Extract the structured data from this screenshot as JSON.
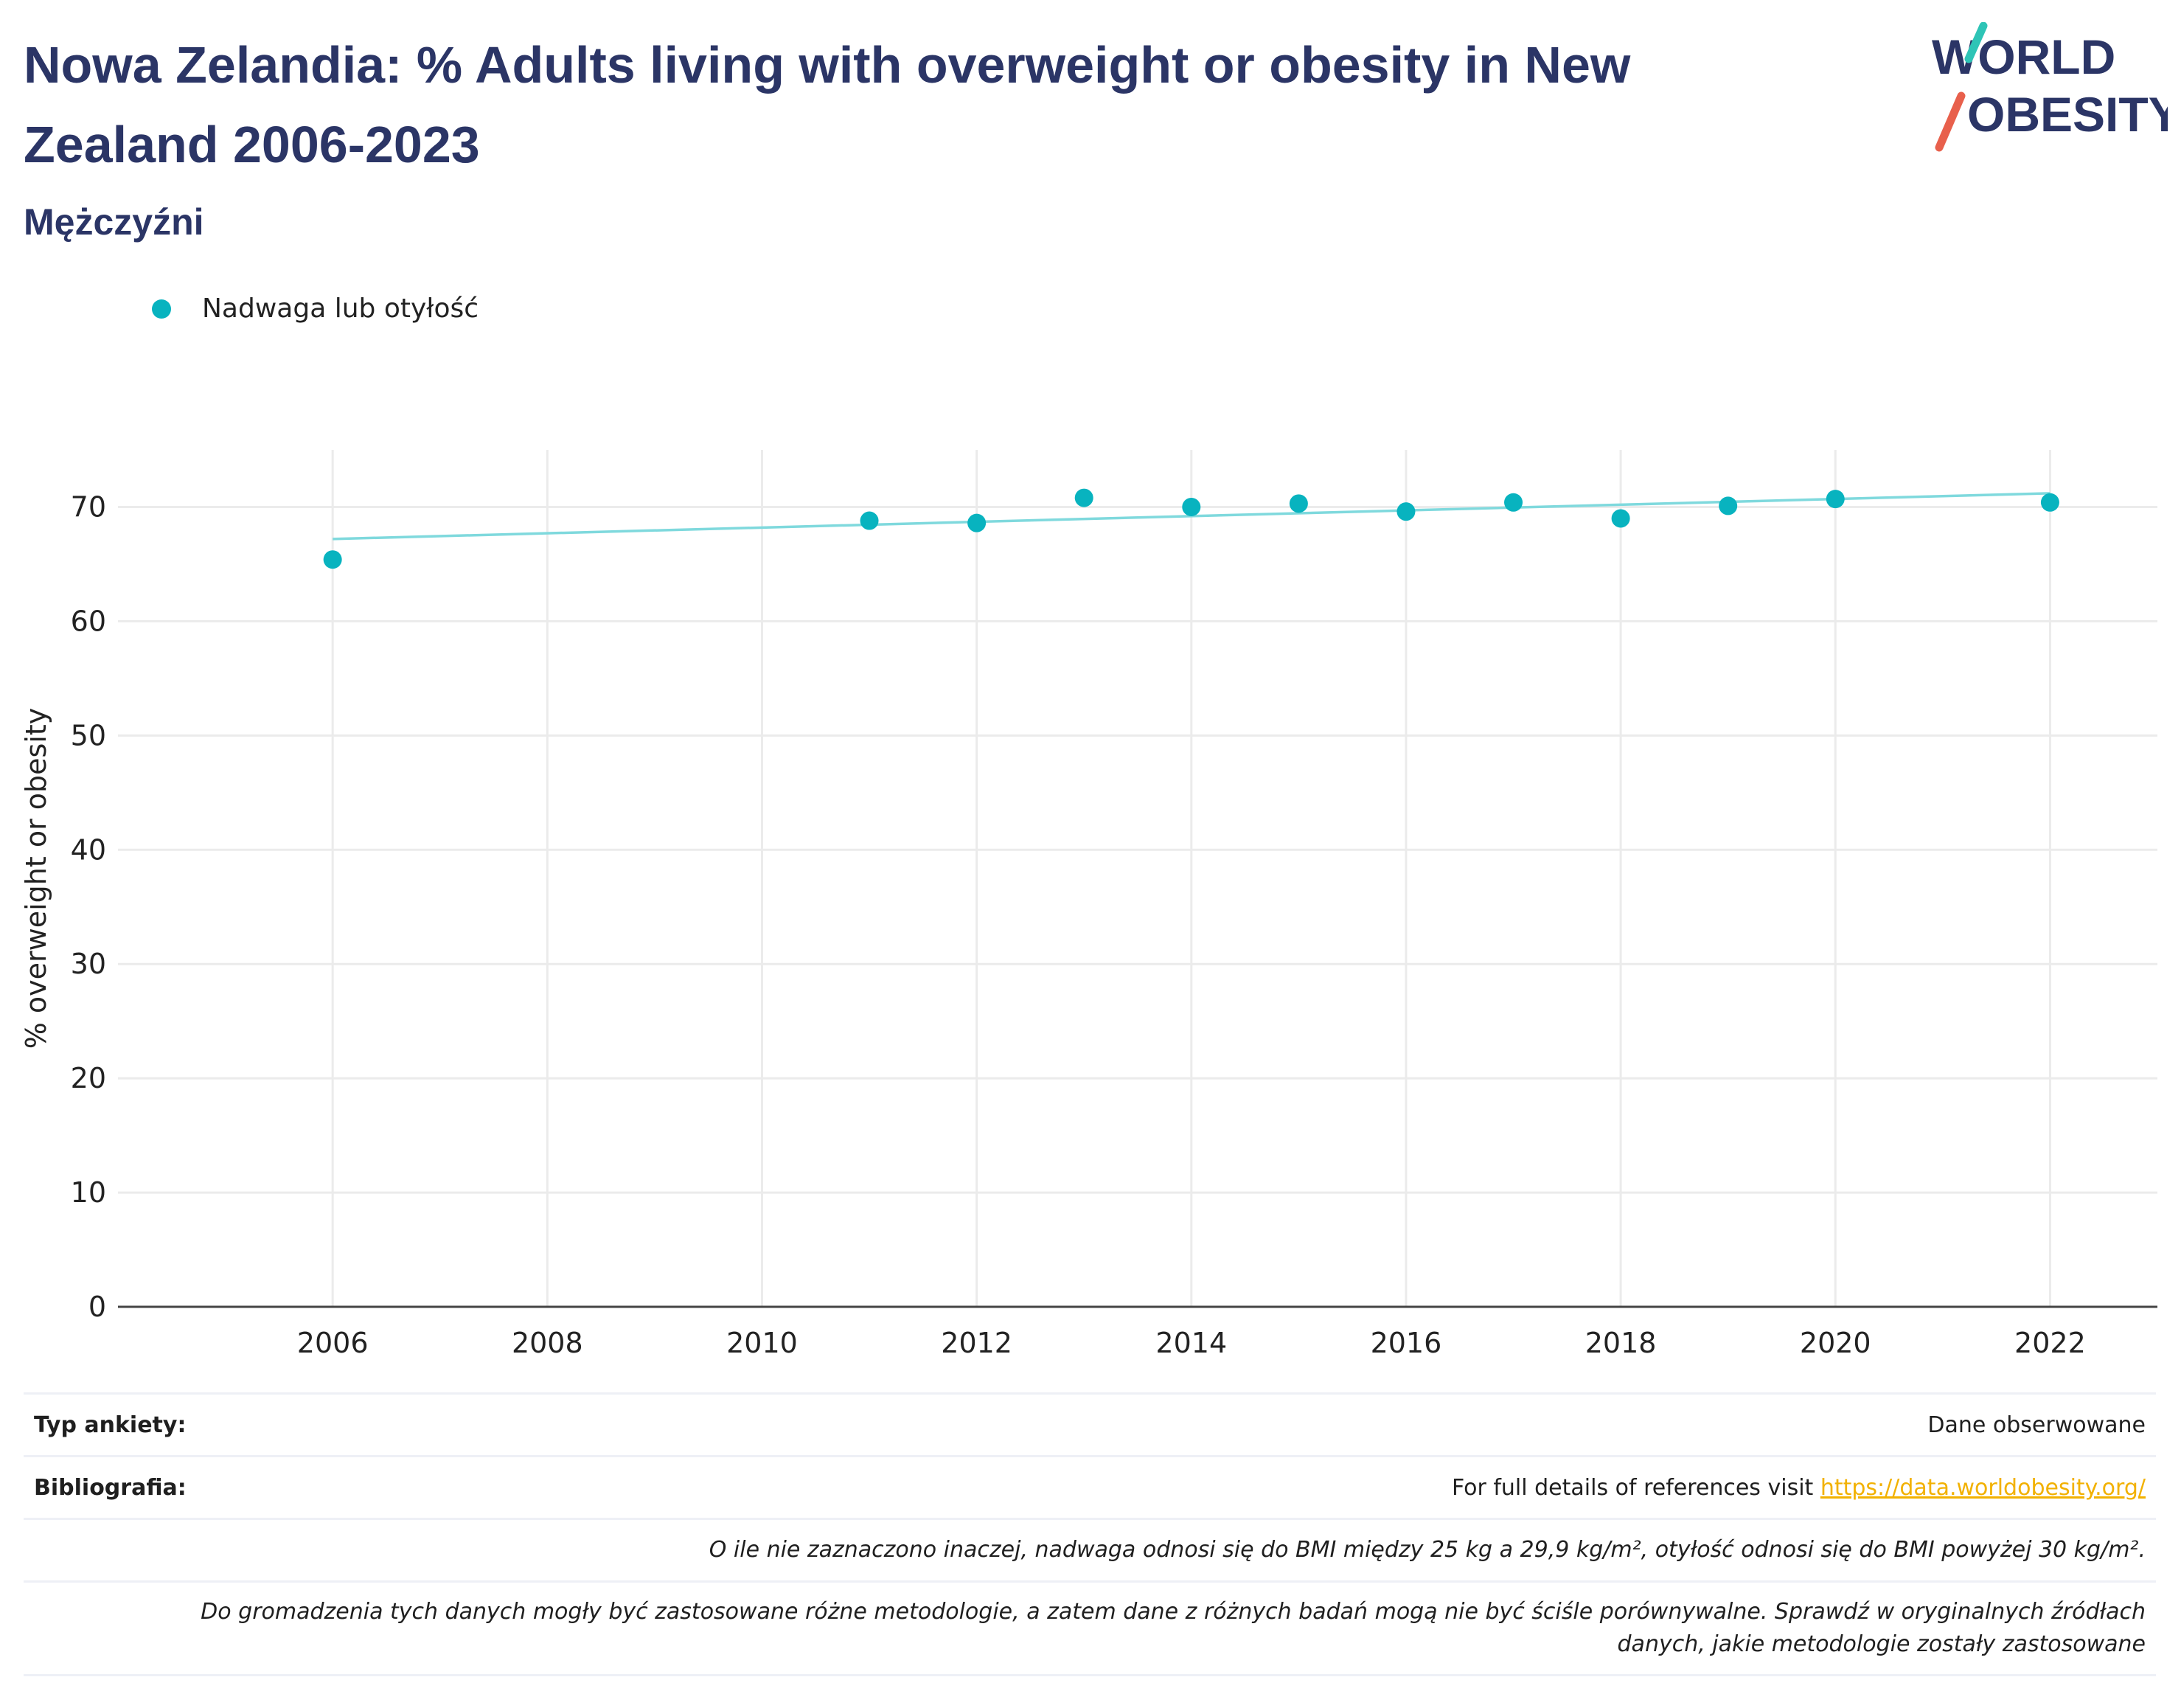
{
  "title": "Nowa Zelandia: % Adults living with overweight or obesity in New Zealand 2006-2023",
  "subtitle": "Mężczyźni",
  "logo": {
    "line1": "WORLD",
    "line2": "OBESITY",
    "accent_teal": "#2ec4b6",
    "accent_red": "#e8604c",
    "text_color": "#2b3566"
  },
  "legend": {
    "label": "Nadwaga lub otyłość",
    "color": "#08b3bf"
  },
  "chart_data": {
    "type": "scatter",
    "ylabel": "% overweight or obesity",
    "xlabel": "",
    "xlim": [
      2005,
      2023
    ],
    "ylim": [
      0,
      75
    ],
    "x_ticks": [
      2006,
      2008,
      2010,
      2012,
      2014,
      2016,
      2018,
      2020,
      2022
    ],
    "y_ticks": [
      0,
      10,
      20,
      30,
      40,
      50,
      60,
      70
    ],
    "grid": true,
    "series": [
      {
        "name": "Nadwaga lub otyłość",
        "color": "#08b3bf",
        "x": [
          2006,
          2011,
          2012,
          2013,
          2014,
          2015,
          2016,
          2017,
          2018,
          2019,
          2020,
          2022
        ],
        "y": [
          65.4,
          68.8,
          68.6,
          70.8,
          70.0,
          70.3,
          69.6,
          70.4,
          69.0,
          70.1,
          70.7,
          70.4
        ]
      }
    ],
    "trendline": {
      "color": "#7fd9dd",
      "x": [
        2006,
        2022
      ],
      "y": [
        67.2,
        71.2
      ]
    }
  },
  "footer": {
    "survey_type_label": "Typ ankiety:",
    "survey_type_value": "Dane obserwowane",
    "bibliography_label": "Bibliografia:",
    "bibliography_text": "For full details of references visit",
    "bibliography_link": "https://data.worldobesity.org/",
    "note_bmi": "O ile nie zaznaczono inaczej, nadwaga odnosi się do BMI między 25 kg a 29,9 kg/m², otyłość odnosi się do BMI powyżej 30 kg/m².",
    "note_methods_1": "Do gromadzenia tych danych mogły być zastosowane różne metodologie, a zatem dane z różnych badań mogą nie być ściśle porównywalne. Sprawdź w oryginalnych źródłach",
    "note_methods_2": "danych, jakie metodologie zostały zastosowane"
  }
}
